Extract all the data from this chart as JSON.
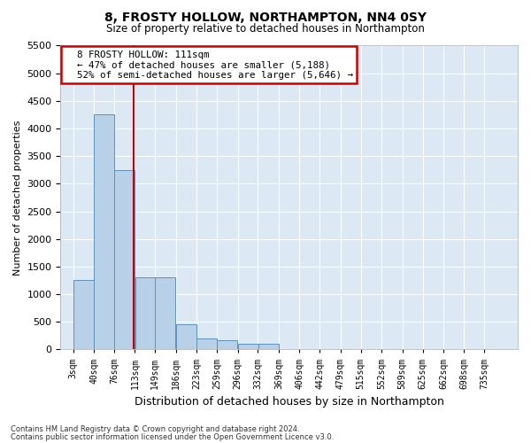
{
  "title_line1": "8, FROSTY HOLLOW, NORTHAMPTON, NN4 0SY",
  "title_line2": "Size of property relative to detached houses in Northampton",
  "xlabel": "Distribution of detached houses by size in Northampton",
  "ylabel": "Number of detached properties",
  "footer_line1": "Contains HM Land Registry data © Crown copyright and database right 2024.",
  "footer_line2": "Contains public sector information licensed under the Open Government Licence v3.0.",
  "annotation_line1": "8 FROSTY HOLLOW: 111sqm",
  "annotation_line2": "← 47% of detached houses are smaller (5,188)",
  "annotation_line3": "52% of semi-detached houses are larger (5,646) →",
  "property_size": 111,
  "bar_color": "#b8d0e8",
  "bar_edge_color": "#6090bb",
  "vline_color": "#cc0000",
  "annotation_box_edgecolor": "#cc0000",
  "background_color": "#dce8f4",
  "categories": [
    "3sqm",
    "40sqm",
    "76sqm",
    "113sqm",
    "149sqm",
    "186sqm",
    "223sqm",
    "259sqm",
    "296sqm",
    "332sqm",
    "369sqm",
    "406sqm",
    "442sqm",
    "479sqm",
    "515sqm",
    "552sqm",
    "589sqm",
    "625sqm",
    "662sqm",
    "698sqm",
    "735sqm"
  ],
  "bin_left_edges": [
    3,
    40,
    76,
    113,
    149,
    186,
    223,
    259,
    296,
    332,
    369,
    406,
    442,
    479,
    515,
    552,
    589,
    625,
    662,
    698,
    735
  ],
  "bin_width": 37,
  "values": [
    1250,
    4250,
    3250,
    1300,
    1300,
    450,
    200,
    160,
    110,
    100,
    0,
    0,
    0,
    0,
    0,
    0,
    0,
    0,
    0,
    0,
    0
  ],
  "ylim": [
    0,
    5500
  ],
  "yticks": [
    0,
    500,
    1000,
    1500,
    2000,
    2500,
    3000,
    3500,
    4000,
    4500,
    5000,
    5500
  ]
}
